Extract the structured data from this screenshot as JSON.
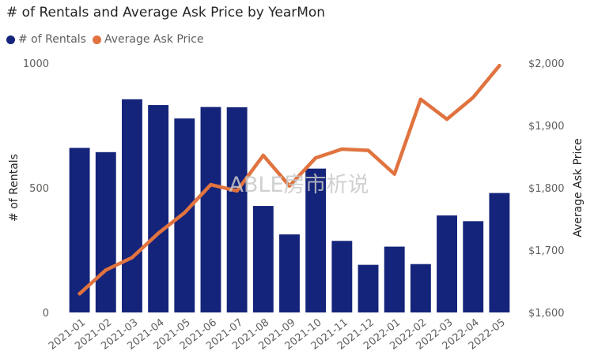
{
  "colors": {
    "bar": "#14247a",
    "line": "#e0733f",
    "text": "#252423",
    "muted": "#605e5c"
  },
  "chart_data": {
    "type": "bar+line",
    "title": "# of Rentals and Average Ask Price by YearMon",
    "categories": [
      "2021-01",
      "2021-02",
      "2021-03",
      "2021-04",
      "2021-05",
      "2021-06",
      "2021-07",
      "2021-08",
      "2021-09",
      "2021-10",
      "2021-11",
      "2021-12",
      "2022-01",
      "2022-02",
      "2022-03",
      "2022-04",
      "2022-05"
    ],
    "series": [
      {
        "name": "# of Rentals",
        "type": "bar",
        "axis": "left",
        "values": [
          660,
          643,
          855,
          832,
          778,
          824,
          823,
          427,
          313,
          577,
          287,
          191,
          264,
          194,
          389,
          366,
          479
        ]
      },
      {
        "name": "Average Ask Price",
        "type": "line",
        "axis": "right",
        "values": [
          1630,
          1668,
          1688,
          1727,
          1760,
          1805,
          1795,
          1852,
          1803,
          1848,
          1862,
          1860,
          1822,
          1942,
          1910,
          1945,
          1996
        ]
      }
    ],
    "ylabel_left": "# of Rentals",
    "ylabel_right": "Average Ask Price",
    "ylim_left": [
      0,
      1000
    ],
    "ylim_right": [
      1600,
      2000
    ],
    "left_ticks": [
      {
        "value": 0,
        "label": "0"
      },
      {
        "value": 500,
        "label": "500"
      },
      {
        "value": 1000,
        "label": "1000"
      }
    ],
    "right_ticks": [
      {
        "value": 1600,
        "label": "$1,600"
      },
      {
        "value": 1700,
        "label": "$1,700"
      },
      {
        "value": 1800,
        "label": "$1,800"
      },
      {
        "value": 1900,
        "label": "$1,900"
      },
      {
        "value": 2000,
        "label": "$2,000"
      }
    ],
    "legend_position": "top-left",
    "watermark": "ABLE房市析说"
  }
}
